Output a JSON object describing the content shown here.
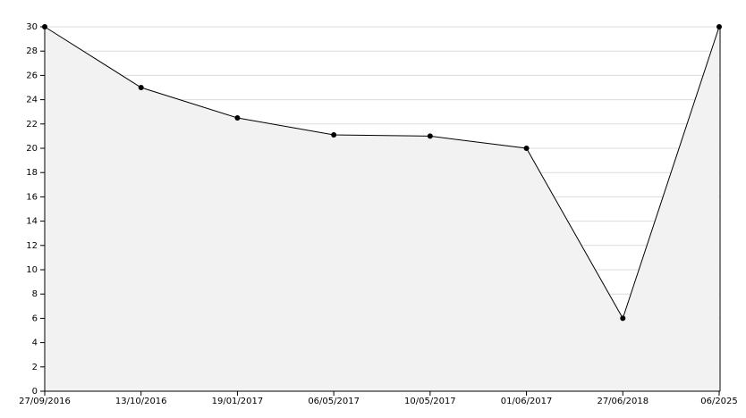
{
  "chart_data": {
    "type": "area",
    "categories": [
      "27/09/2016",
      "13/10/2016",
      "19/01/2017",
      "06/05/2017",
      "10/05/2017",
      "01/06/2017",
      "27/06/2018",
      "06/2025"
    ],
    "values": [
      30,
      25,
      22.5,
      21.1,
      21,
      20,
      6,
      30
    ],
    "color": "#000000",
    "fill": "#f2f2f2",
    "ylim": [
      0,
      30
    ],
    "yticks": [
      0,
      2,
      4,
      6,
      8,
      10,
      12,
      14,
      16,
      18,
      20,
      22,
      24,
      26,
      28,
      30
    ],
    "grid": true
  }
}
